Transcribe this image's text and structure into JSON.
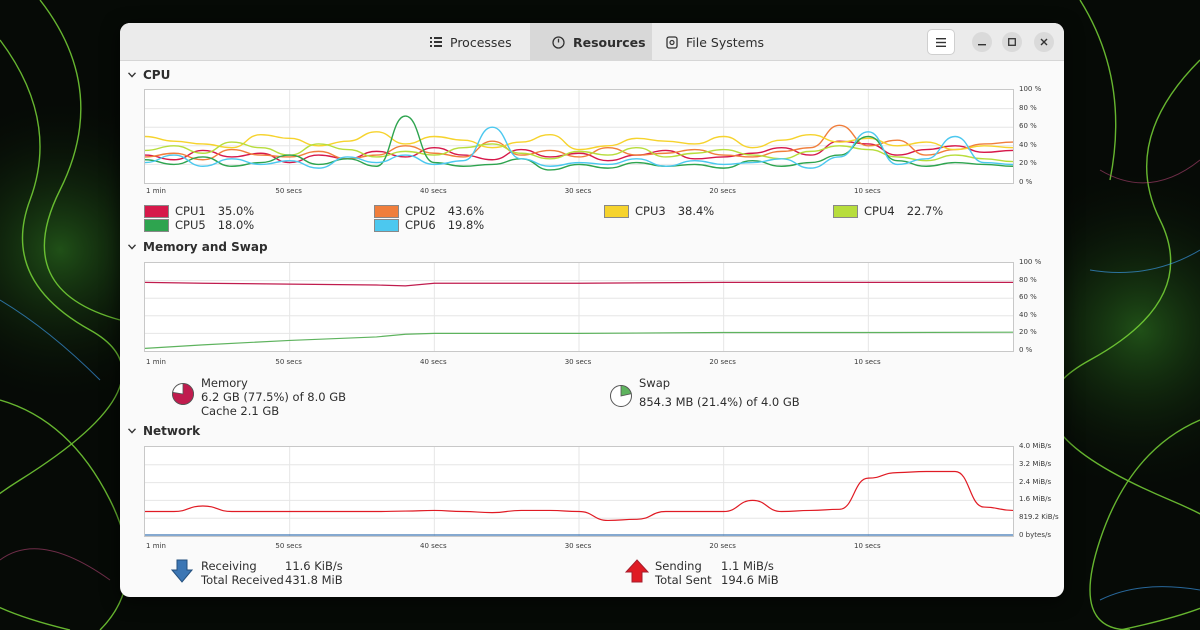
{
  "colors": {
    "cpu1": "#d6184a",
    "cpu2": "#f07e3c",
    "cpu3": "#f6d32d",
    "cpu4": "#b7dd3c",
    "cpu5": "#2ea44f",
    "cpu6": "#4cc8ef",
    "memory": "#c01c4e",
    "swap": "#5eb35e",
    "receiving": "#3c76b4",
    "sending": "#e01b24"
  },
  "tabs": [
    {
      "label": "Processes",
      "icon": "list-icon"
    },
    {
      "label": "Resources",
      "icon": "gauge-icon",
      "active": true
    },
    {
      "label": "File Systems",
      "icon": "disk-icon"
    }
  ],
  "cpu": {
    "title": "CPU",
    "y_ticks": [
      "100 %",
      "80 %",
      "60 %",
      "40 %",
      "20 %",
      "0 %"
    ],
    "x_ticks": [
      "1 min",
      "50 secs",
      "40 secs",
      "30 secs",
      "20 secs",
      "10 secs"
    ],
    "legend": [
      {
        "name": "CPU1",
        "value": "35.0%"
      },
      {
        "name": "CPU2",
        "value": "43.6%"
      },
      {
        "name": "CPU3",
        "value": "38.4%"
      },
      {
        "name": "CPU4",
        "value": "22.7%"
      },
      {
        "name": "CPU5",
        "value": "18.0%"
      },
      {
        "name": "CPU6",
        "value": "19.8%"
      }
    ]
  },
  "memory": {
    "title": "Memory and Swap",
    "y_ticks": [
      "100 %",
      "80 %",
      "60 %",
      "40 %",
      "20 %",
      "0 %"
    ],
    "x_ticks": [
      "1 min",
      "50 secs",
      "40 secs",
      "30 secs",
      "20 secs",
      "10 secs"
    ],
    "memory_label": "Memory",
    "memory_used": "6.2 GB (77.5%) of 8.0 GB",
    "memory_cache": "Cache 2.1 GB",
    "memory_fraction": 0.775,
    "swap_label": "Swap",
    "swap_used": "854.3 MB (21.4%) of 4.0 GB",
    "swap_fraction": 0.214
  },
  "network": {
    "title": "Network",
    "y_ticks": [
      "4.0 MiB/s",
      "3.2 MiB/s",
      "2.4 MiB/s",
      "1.6 MiB/s",
      "819.2 KiB/s",
      "0 bytes/s"
    ],
    "x_ticks": [
      "1 min",
      "50 secs",
      "40 secs",
      "30 secs",
      "20 secs",
      "10 secs"
    ],
    "receiving_label": "Receiving",
    "receiving_value": "11.6 KiB/s",
    "total_received_label": "Total Received",
    "total_received_value": "431.8 MiB",
    "sending_label": "Sending",
    "sending_value": "1.1 MiB/s",
    "total_sent_label": "Total Sent",
    "total_sent_value": "194.6 MiB"
  },
  "chart_data": [
    {
      "type": "line",
      "x": [
        60,
        58,
        56,
        54,
        52,
        50,
        48,
        46,
        44,
        42,
        40,
        38,
        36,
        34,
        32,
        30,
        28,
        26,
        24,
        22,
        20,
        18,
        16,
        14,
        12,
        10,
        8,
        6,
        4,
        2,
        0
      ],
      "ylim": [
        0,
        100
      ],
      "series": [
        {
          "name": "CPU1",
          "values": [
            30,
            25,
            35,
            28,
            32,
            22,
            30,
            26,
            34,
            28,
            38,
            30,
            25,
            36,
            28,
            32,
            24,
            30,
            35,
            26,
            28,
            32,
            38,
            30,
            45,
            42,
            30,
            36,
            40,
            33,
            35
          ]
        },
        {
          "name": "CPU2",
          "values": [
            28,
            32,
            25,
            36,
            30,
            28,
            34,
            26,
            30,
            40,
            32,
            28,
            45,
            30,
            35,
            28,
            38,
            30,
            32,
            36,
            30,
            28,
            34,
            38,
            62,
            40,
            46,
            30,
            36,
            42,
            44
          ]
        },
        {
          "name": "CPU3",
          "values": [
            50,
            45,
            42,
            38,
            52,
            48,
            40,
            45,
            55,
            42,
            50,
            46,
            38,
            44,
            52,
            36,
            40,
            48,
            45,
            42,
            50,
            38,
            46,
            52,
            44,
            48,
            40,
            44,
            36,
            40,
            38
          ]
        },
        {
          "name": "CPU4",
          "values": [
            35,
            40,
            32,
            44,
            38,
            30,
            42,
            36,
            28,
            34,
            30,
            38,
            42,
            32,
            26,
            34,
            30,
            38,
            28,
            32,
            36,
            30,
            26,
            34,
            40,
            36,
            28,
            24,
            30,
            26,
            23
          ]
        },
        {
          "name": "CPU5",
          "values": [
            25,
            20,
            28,
            18,
            22,
            30,
            20,
            26,
            18,
            72,
            22,
            18,
            20,
            26,
            14,
            20,
            16,
            22,
            18,
            20,
            16,
            24,
            18,
            22,
            30,
            50,
            24,
            18,
            22,
            20,
            18
          ]
        },
        {
          "name": "CPU6",
          "values": [
            22,
            30,
            18,
            26,
            20,
            24,
            16,
            28,
            22,
            30,
            20,
            24,
            60,
            26,
            18,
            22,
            20,
            26,
            18,
            24,
            20,
            22,
            26,
            16,
            28,
            55,
            20,
            26,
            50,
            22,
            20
          ]
        }
      ]
    },
    {
      "type": "line",
      "x": [
        60,
        56,
        50,
        44,
        42,
        40,
        30,
        20,
        10,
        0
      ],
      "ylim": [
        0,
        100
      ],
      "series": [
        {
          "name": "Memory",
          "values": [
            78,
            77,
            76,
            75,
            74,
            77,
            77,
            78,
            78,
            78
          ]
        },
        {
          "name": "Swap",
          "values": [
            3,
            7,
            12,
            16,
            19,
            20,
            20,
            21,
            21,
            21.4
          ]
        }
      ]
    },
    {
      "type": "line",
      "x": [
        60,
        58,
        56,
        54,
        52,
        50,
        48,
        46,
        44,
        42,
        40,
        38,
        36,
        34,
        32,
        30,
        28,
        26,
        24,
        22,
        20,
        18,
        16,
        14,
        12,
        10,
        8,
        6,
        4,
        2,
        0
      ],
      "ylim": [
        0,
        4.0
      ],
      "ylabel": "MiB/s",
      "series": [
        {
          "name": "Sending",
          "values": [
            1.1,
            1.1,
            1.35,
            1.1,
            1.1,
            1.1,
            1.1,
            1.1,
            1.1,
            1.12,
            1.15,
            1.1,
            1.05,
            1.15,
            1.15,
            1.1,
            0.7,
            0.75,
            1.1,
            1.1,
            1.1,
            1.6,
            1.1,
            1.15,
            1.2,
            2.6,
            2.85,
            2.9,
            2.9,
            1.3,
            1.15
          ]
        },
        {
          "name": "Receiving",
          "values": [
            0.01,
            0.01,
            0.01,
            0.01,
            0.01,
            0.01,
            0.01,
            0.01,
            0.01,
            0.01,
            0.01,
            0.01,
            0.01,
            0.01,
            0.01,
            0.01,
            0.01,
            0.01,
            0.01,
            0.01,
            0.01,
            0.01,
            0.01,
            0.01,
            0.01,
            0.01,
            0.01,
            0.01,
            0.01,
            0.01,
            0.01
          ]
        }
      ]
    }
  ]
}
